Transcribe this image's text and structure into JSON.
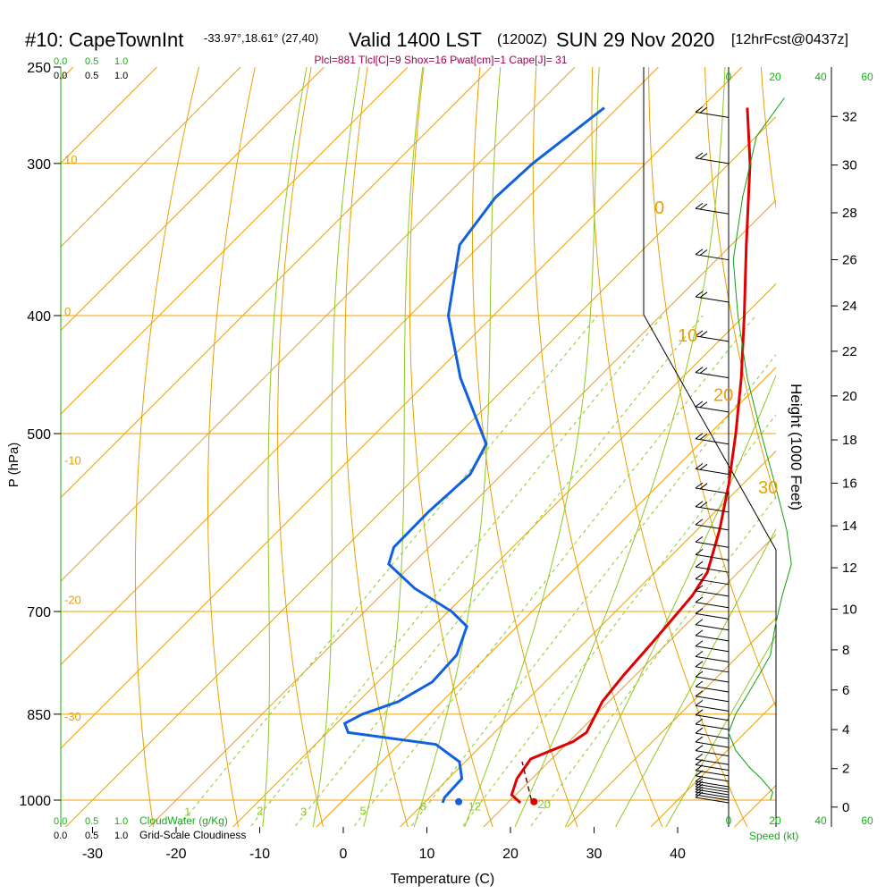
{
  "header": {
    "station": "#10: CapeTownInt",
    "coords": "-33.97°,18.61° (27,40)",
    "valid": "Valid 1400 LST",
    "zulu": "(1200Z)",
    "date": "SUN 29 Nov 2020",
    "forecast": "[12hrFcst@0437z]",
    "indices": "Plcl=881 Tlcl[C]=9 Shox=16 Pwat[cm]=1 Cape[J]= 31"
  },
  "colors": {
    "temperature": "#e00000",
    "dewpoint": "#1060e0",
    "isotherm_isobar": "#f0a000",
    "dry_adiabat": "#e8a000",
    "moist_adiabat": "#90c820",
    "mixing_ratio": "#90c820",
    "speed_profile": "#10a010",
    "title": "#000000",
    "indices": "#a00050",
    "green_label": "#10b010"
  },
  "chart_data": {
    "type": "line",
    "subtype": "skew-t log-p sounding",
    "xlabel": "Temperature (C)",
    "ylabel": "P (hPa)",
    "right_label": "Height (1000 Feet)",
    "xlim": [
      -35,
      47
    ],
    "ylim_hpa": [
      1050,
      250
    ],
    "temperature_ticks": [
      -30,
      -20,
      -10,
      0,
      10,
      20,
      30,
      40
    ],
    "pressure_ticks": [
      1000,
      850,
      700,
      500,
      400,
      300,
      250
    ],
    "height_ticks": [
      0,
      2,
      4,
      6,
      8,
      10,
      12,
      14,
      16,
      18,
      20,
      22,
      24,
      26,
      28,
      30,
      32
    ],
    "top_left_scale": {
      "green": [
        "0.0",
        "0.5",
        "1.0"
      ],
      "black": [
        "0.0",
        "0.5",
        "1.0"
      ]
    },
    "bottom_left_scale": {
      "green": [
        "0.0",
        "0.5",
        "1.0"
      ],
      "green_label": "CloudWater (g/Kg)",
      "black": [
        "0.0",
        "0.5",
        "1.0"
      ],
      "black_label": "Grid-Scale Cloudiness"
    },
    "speed_ticks": [
      "0",
      "20",
      "40",
      "60"
    ],
    "speed_label": "Speed (kt)",
    "mixing_ratio_labels": [
      "1",
      "2",
      "3",
      "5",
      "8",
      "12",
      "20"
    ],
    "adiabat_labels_left": [
      "10",
      "0",
      "-10",
      "-20",
      "-30"
    ],
    "adiabat_labels_right": [
      "0",
      "10",
      "20",
      "30"
    ],
    "series": [
      {
        "name": "Temperature",
        "points": [
          {
            "p": 1005,
            "t": 21.5
          },
          {
            "p": 990,
            "t": 19.5
          },
          {
            "p": 960,
            "t": 18.2
          },
          {
            "p": 925,
            "t": 17.5
          },
          {
            "p": 910,
            "t": 19.0
          },
          {
            "p": 895,
            "t": 20.5
          },
          {
            "p": 880,
            "t": 21.0
          },
          {
            "p": 860,
            "t": 20.3
          },
          {
            "p": 830,
            "t": 19.2
          },
          {
            "p": 790,
            "t": 18.6
          },
          {
            "p": 740,
            "t": 18.1
          },
          {
            "p": 680,
            "t": 17.3
          },
          {
            "p": 650,
            "t": 16.3
          },
          {
            "p": 600,
            "t": 12.7
          },
          {
            "p": 550,
            "t": 8.3
          },
          {
            "p": 500,
            "t": 3.1
          },
          {
            "p": 450,
            "t": -2.9
          },
          {
            "p": 400,
            "t": -10.0
          },
          {
            "p": 350,
            "t": -18.2
          },
          {
            "p": 300,
            "t": -27.5
          },
          {
            "p": 270,
            "t": -34.5
          }
        ]
      },
      {
        "name": "Dewpoint",
        "points": [
          {
            "p": 1005,
            "t": 12.2
          },
          {
            "p": 995,
            "t": 11.8
          },
          {
            "p": 960,
            "t": 11.6
          },
          {
            "p": 930,
            "t": 9.3
          },
          {
            "p": 900,
            "t": 4.4
          },
          {
            "p": 880,
            "t": -7.5
          },
          {
            "p": 865,
            "t": -9.0
          },
          {
            "p": 850,
            "t": -8.0
          },
          {
            "p": 830,
            "t": -5.2
          },
          {
            "p": 800,
            "t": -3.5
          },
          {
            "p": 760,
            "t": -3.8
          },
          {
            "p": 720,
            "t": -6.0
          },
          {
            "p": 700,
            "t": -9.6
          },
          {
            "p": 670,
            "t": -16.8
          },
          {
            "p": 640,
            "t": -22.8
          },
          {
            "p": 620,
            "t": -24.2
          },
          {
            "p": 580,
            "t": -24.3
          },
          {
            "p": 540,
            "t": -23.8
          },
          {
            "p": 510,
            "t": -25.5
          },
          {
            "p": 450,
            "t": -36.5
          },
          {
            "p": 400,
            "t": -45.4
          },
          {
            "p": 350,
            "t": -52.5
          },
          {
            "p": 320,
            "t": -53.9
          },
          {
            "p": 300,
            "t": -53.5
          },
          {
            "p": 270,
            "t": -51.6
          }
        ]
      },
      {
        "name": "Parcel",
        "points": [
          {
            "p": 1000,
            "t": 22.5
          },
          {
            "p": 930,
            "t": 16.8
          }
        ]
      }
    ],
    "surface_markers": [
      {
        "name": "surface-dewpoint",
        "p": 1003,
        "t": 14.0
      },
      {
        "name": "surface-temperature",
        "p": 1003,
        "t": 23.0
      }
    ],
    "wind_barbs_hpa": [
      1005,
      1000,
      995,
      990,
      985,
      980,
      975,
      965,
      955,
      945,
      935,
      920,
      905,
      890,
      875,
      860,
      845,
      830,
      815,
      800,
      785,
      770,
      755,
      740,
      725,
      710,
      695,
      680,
      665,
      650,
      635,
      620,
      600,
      580,
      560,
      540,
      510,
      480,
      450,
      420,
      390,
      360,
      330,
      300,
      275
    ],
    "speed_profile": [
      {
        "p": 1000,
        "kt": 18
      },
      {
        "p": 985,
        "kt": 19
      },
      {
        "p": 960,
        "kt": 14
      },
      {
        "p": 940,
        "kt": 9
      },
      {
        "p": 910,
        "kt": 3
      },
      {
        "p": 880,
        "kt": 0
      },
      {
        "p": 850,
        "kt": 3
      },
      {
        "p": 820,
        "kt": 8
      },
      {
        "p": 790,
        "kt": 13
      },
      {
        "p": 760,
        "kt": 18
      },
      {
        "p": 720,
        "kt": 20
      },
      {
        "p": 680,
        "kt": 23
      },
      {
        "p": 640,
        "kt": 27
      },
      {
        "p": 600,
        "kt": 25
      },
      {
        "p": 560,
        "kt": 21
      },
      {
        "p": 500,
        "kt": 14
      },
      {
        "p": 450,
        "kt": 8
      },
      {
        "p": 400,
        "kt": 4
      },
      {
        "p": 360,
        "kt": 2
      },
      {
        "p": 320,
        "kt": 6
      },
      {
        "p": 285,
        "kt": 12
      },
      {
        "p": 265,
        "kt": 24
      }
    ]
  }
}
